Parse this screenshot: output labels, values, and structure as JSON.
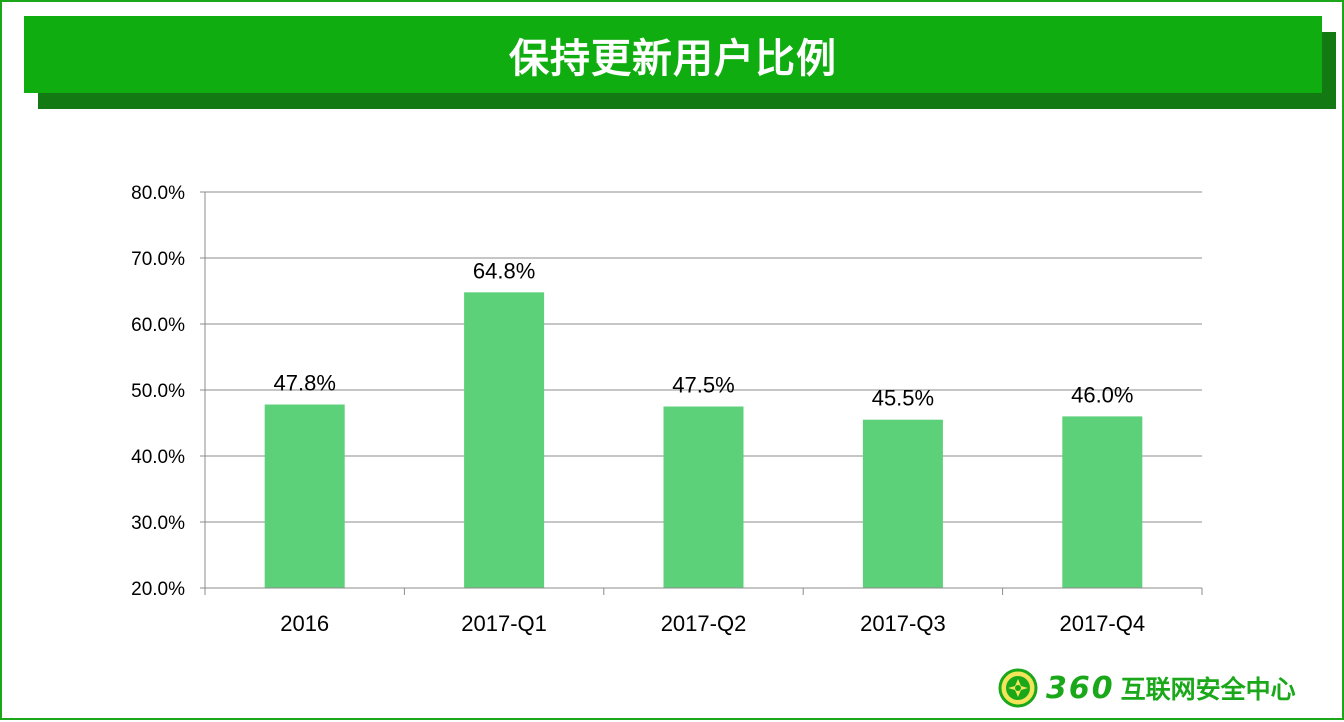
{
  "title": "保持更新用户比例",
  "chart_data": {
    "type": "bar",
    "categories": [
      "2016",
      "2017-Q1",
      "2017-Q2",
      "2017-Q3",
      "2017-Q4"
    ],
    "values": [
      47.8,
      64.8,
      47.5,
      45.5,
      46.0
    ],
    "data_labels": [
      "47.8%",
      "64.8%",
      "47.5%",
      "45.5%",
      "46.0%"
    ],
    "yticks": [
      "20.0%",
      "30.0%",
      "40.0%",
      "50.0%",
      "60.0%",
      "70.0%",
      "80.0%"
    ],
    "ylim": [
      20,
      80
    ],
    "grid": true,
    "bar_color": "#5dd07a"
  },
  "logo": {
    "number": "360",
    "text": "互联网安全中心",
    "icon": "360-shield-logo-icon",
    "color": "#1aa81a"
  },
  "colors": {
    "banner": "#10ad10",
    "banner_shadow": "#137a13",
    "border": "#1aa81a"
  }
}
